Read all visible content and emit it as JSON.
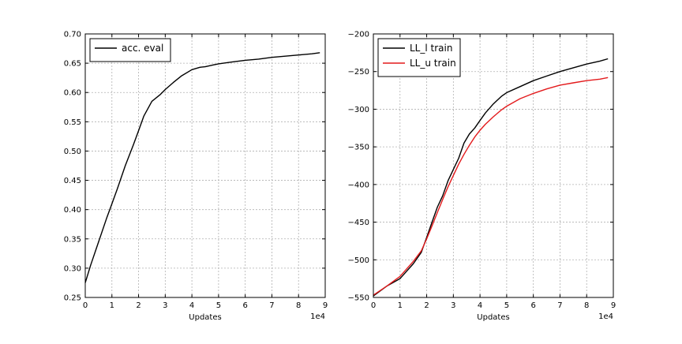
{
  "chart_data": [
    {
      "type": "line",
      "xlabel": "Updates",
      "ylabel": "",
      "x_scale_label": "1e4",
      "xlim": [
        0,
        90000
      ],
      "ylim": [
        0.25,
        0.7
      ],
      "xticks": [
        0,
        10000,
        20000,
        30000,
        40000,
        50000,
        60000,
        70000,
        80000,
        90000
      ],
      "xtick_labels": [
        "0",
        "1",
        "2",
        "3",
        "4",
        "5",
        "6",
        "7",
        "8",
        "9"
      ],
      "yticks": [
        0.25,
        0.3,
        0.35,
        0.4,
        0.45,
        0.5,
        0.55,
        0.6,
        0.65,
        0.7
      ],
      "ytick_labels": [
        "0.25",
        "0.30",
        "0.35",
        "0.40",
        "0.45",
        "0.50",
        "0.55",
        "0.60",
        "0.65",
        "0.70"
      ],
      "grid": true,
      "legend_position": "top-left",
      "series": [
        {
          "name": "acc. eval",
          "color": "#000000",
          "x": [
            0,
            2000,
            5000,
            8000,
            10000,
            12000,
            15000,
            18000,
            20000,
            22000,
            25000,
            28000,
            30000,
            33000,
            36000,
            40000,
            43000,
            45000,
            48000,
            50000,
            55000,
            60000,
            65000,
            70000,
            75000,
            80000,
            85000,
            88000
          ],
          "y": [
            0.275,
            0.305,
            0.345,
            0.385,
            0.41,
            0.435,
            0.475,
            0.51,
            0.535,
            0.56,
            0.585,
            0.596,
            0.605,
            0.617,
            0.628,
            0.639,
            0.643,
            0.644,
            0.647,
            0.649,
            0.652,
            0.655,
            0.657,
            0.66,
            0.662,
            0.664,
            0.666,
            0.668
          ]
        }
      ]
    },
    {
      "type": "line",
      "xlabel": "Updates",
      "ylabel": "",
      "x_scale_label": "1e4",
      "xlim": [
        0,
        90000
      ],
      "ylim": [
        -550,
        -200
      ],
      "xticks": [
        0,
        10000,
        20000,
        30000,
        40000,
        50000,
        60000,
        70000,
        80000,
        90000
      ],
      "xtick_labels": [
        "0",
        "1",
        "2",
        "3",
        "4",
        "5",
        "6",
        "7",
        "8",
        "9"
      ],
      "yticks": [
        -550,
        -500,
        -450,
        -400,
        -350,
        -300,
        -250,
        -200
      ],
      "ytick_labels": [
        "−550",
        "−500",
        "−450",
        "−400",
        "−350",
        "−300",
        "−250",
        "−200"
      ],
      "grid": true,
      "legend_position": "top-left",
      "series": [
        {
          "name": "LL_l train",
          "color": "#000000",
          "x": [
            0,
            5000,
            10000,
            15000,
            18000,
            20000,
            22000,
            24000,
            26000,
            28000,
            30000,
            32000,
            34000,
            36000,
            38000,
            40000,
            42000,
            45000,
            48000,
            50000,
            55000,
            60000,
            65000,
            70000,
            75000,
            80000,
            85000,
            88000
          ],
          "y": [
            -548,
            -535,
            -525,
            -505,
            -490,
            -470,
            -450,
            -430,
            -415,
            -395,
            -380,
            -365,
            -345,
            -333,
            -325,
            -315,
            -305,
            -293,
            -283,
            -278,
            -270,
            -262,
            -256,
            -250,
            -245,
            -240,
            -236,
            -233
          ]
        },
        {
          "name": "LL_u train",
          "color": "#e31a1c",
          "x": [
            0,
            5000,
            10000,
            15000,
            18000,
            20000,
            22000,
            24000,
            26000,
            28000,
            30000,
            32000,
            34000,
            36000,
            38000,
            40000,
            42000,
            45000,
            48000,
            50000,
            55000,
            60000,
            65000,
            70000,
            75000,
            80000,
            85000,
            88000
          ],
          "y": [
            -547,
            -535,
            -522,
            -502,
            -488,
            -472,
            -455,
            -437,
            -420,
            -403,
            -388,
            -373,
            -360,
            -348,
            -337,
            -328,
            -320,
            -310,
            -301,
            -296,
            -286,
            -279,
            -273,
            -268,
            -265,
            -262,
            -260,
            -258
          ]
        }
      ]
    }
  ]
}
